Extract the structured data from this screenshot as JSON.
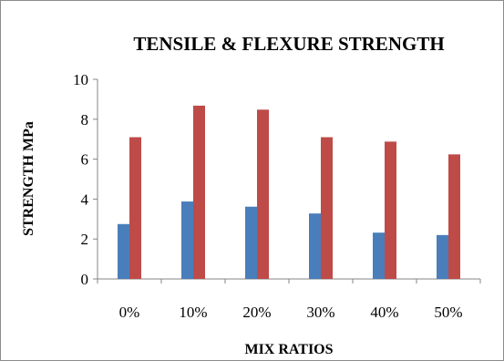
{
  "chart_data": {
    "type": "bar",
    "title": "TENSILE & FLEXURE STRENGTH",
    "xlabel": "MIX RATIOS",
    "ylabel": "STRENGTH MPa",
    "categories": [
      "0%",
      "10%",
      "20%",
      "30%",
      "40%",
      "50%"
    ],
    "series": [
      {
        "values": [
          2.75,
          3.88,
          3.62,
          3.28,
          2.32,
          2.2
        ],
        "color": "#4a7ebb"
      },
      {
        "values": [
          7.1,
          8.68,
          8.48,
          7.1,
          6.88,
          6.24
        ],
        "color": "#be4b48"
      }
    ],
    "ylim": [
      0,
      10
    ],
    "yticks": [
      "0",
      "2",
      "4",
      "6",
      "8",
      "10"
    ],
    "grid": false,
    "legend": "none"
  }
}
